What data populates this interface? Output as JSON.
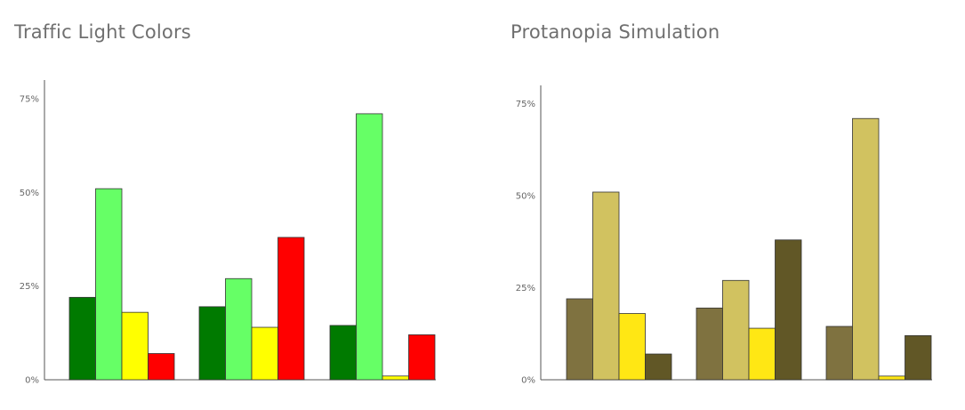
{
  "chart_data": [
    {
      "type": "bar",
      "title": "Traffic Light Colors",
      "xlabel": "",
      "ylabel": "",
      "ylim": [
        0,
        80
      ],
      "yticks": [
        0,
        25,
        50,
        75
      ],
      "ytick_labels": [
        "0%",
        "25%",
        "50%",
        "75%"
      ],
      "grid": false,
      "groups": 3,
      "series": [
        {
          "color": "#007a00",
          "values": [
            22,
            19.5,
            14.5
          ]
        },
        {
          "color": "#66ff66",
          "values": [
            51,
            27,
            71
          ]
        },
        {
          "color": "#ffff00",
          "values": [
            18,
            14,
            1
          ]
        },
        {
          "color": "#ff0000",
          "values": [
            7,
            38,
            12
          ]
        }
      ]
    },
    {
      "type": "bar",
      "title": "Protanopia Simulation",
      "xlabel": "",
      "ylabel": "",
      "ylim": [
        0,
        80
      ],
      "yticks": [
        0,
        25,
        50,
        75
      ],
      "ytick_labels": [
        "0%",
        "25%",
        "50%",
        "75%"
      ],
      "grid": false,
      "groups": 3,
      "series": [
        {
          "color": "#7f7240",
          "values": [
            22,
            19.5,
            14.5
          ]
        },
        {
          "color": "#d1c260",
          "values": [
            51,
            27,
            71
          ]
        },
        {
          "color": "#ffe714",
          "values": [
            18,
            14,
            1
          ]
        },
        {
          "color": "#615726",
          "values": [
            7,
            38,
            12
          ]
        }
      ]
    }
  ]
}
